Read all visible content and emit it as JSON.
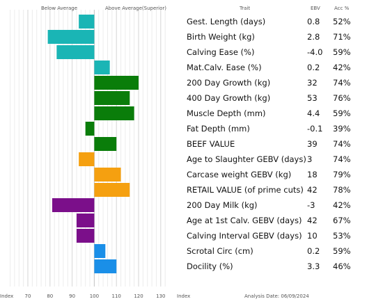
{
  "header": {
    "below": "Below Average",
    "above": "Above Average(Superior)",
    "trait": "Trait",
    "ebv": "EBV",
    "acc": "Acc %"
  },
  "footer": {
    "index_left": "Index",
    "index_right": "Index",
    "analysis_date": "Analysis Date: 06/09/2024"
  },
  "chart_data": {
    "type": "bar",
    "orientation": "horizontal",
    "baseline": 100,
    "xlim": [
      60,
      135
    ],
    "xticks": [
      70,
      80,
      90,
      100,
      110,
      120,
      130
    ],
    "grid": true,
    "rows": [
      {
        "trait": "Gest. Length (days)",
        "ebv": "0.8",
        "acc": "52%",
        "index": 93,
        "color": "#1ab5b5"
      },
      {
        "trait": "Birth Weight (kg)",
        "ebv": "2.8",
        "acc": "71%",
        "index": 79,
        "color": "#1ab5b5"
      },
      {
        "trait": "Calving Ease (%)",
        "ebv": "-4.0",
        "acc": "59%",
        "index": 83,
        "color": "#1ab5b5"
      },
      {
        "trait": "Mat.Calv. Ease (%)",
        "ebv": "0.2",
        "acc": "42%",
        "index": 107,
        "color": "#1ab5b5"
      },
      {
        "trait": "200 Day Growth (kg)",
        "ebv": "32",
        "acc": "74%",
        "index": 120,
        "color": "#0a7d0a"
      },
      {
        "trait": "400 Day Growth (kg)",
        "ebv": "53",
        "acc": "76%",
        "index": 116,
        "color": "#0a7d0a"
      },
      {
        "trait": "Muscle Depth (mm)",
        "ebv": "4.4",
        "acc": "59%",
        "index": 118,
        "color": "#0a7d0a"
      },
      {
        "trait": "Fat Depth (mm)",
        "ebv": "-0.1",
        "acc": "39%",
        "index": 96,
        "color": "#0a7d0a"
      },
      {
        "trait": "BEEF VALUE",
        "ebv": "39",
        "acc": "74%",
        "index": 110,
        "color": "#0a7d0a"
      },
      {
        "trait": "Age to Slaughter GEBV (days)",
        "ebv": "3",
        "acc": "74%",
        "index": 93,
        "color": "#f5a010"
      },
      {
        "trait": "Carcase weight GEBV (kg)",
        "ebv": "18",
        "acc": "79%",
        "index": 112,
        "color": "#f5a010"
      },
      {
        "trait": "RETAIL VALUE (of prime cuts)",
        "ebv": "42",
        "acc": "78%",
        "index": 116,
        "color": "#f5a010"
      },
      {
        "trait": "200 Day Milk (kg)",
        "ebv": "-3",
        "acc": "42%",
        "index": 81,
        "color": "#7b0f8a"
      },
      {
        "trait": "Age at 1st Calv. GEBV (days)",
        "ebv": "42",
        "acc": "67%",
        "index": 92,
        "color": "#7b0f8a"
      },
      {
        "trait": "Calving Interval GEBV (days)",
        "ebv": "10",
        "acc": "53%",
        "index": 92,
        "color": "#7b0f8a"
      },
      {
        "trait": "Scrotal Circ (cm)",
        "ebv": "0.2",
        "acc": "59%",
        "index": 105,
        "color": "#1a8fe8"
      },
      {
        "trait": "Docility (%)",
        "ebv": "3.3",
        "acc": "46%",
        "index": 110,
        "color": "#1a8fe8"
      }
    ]
  }
}
